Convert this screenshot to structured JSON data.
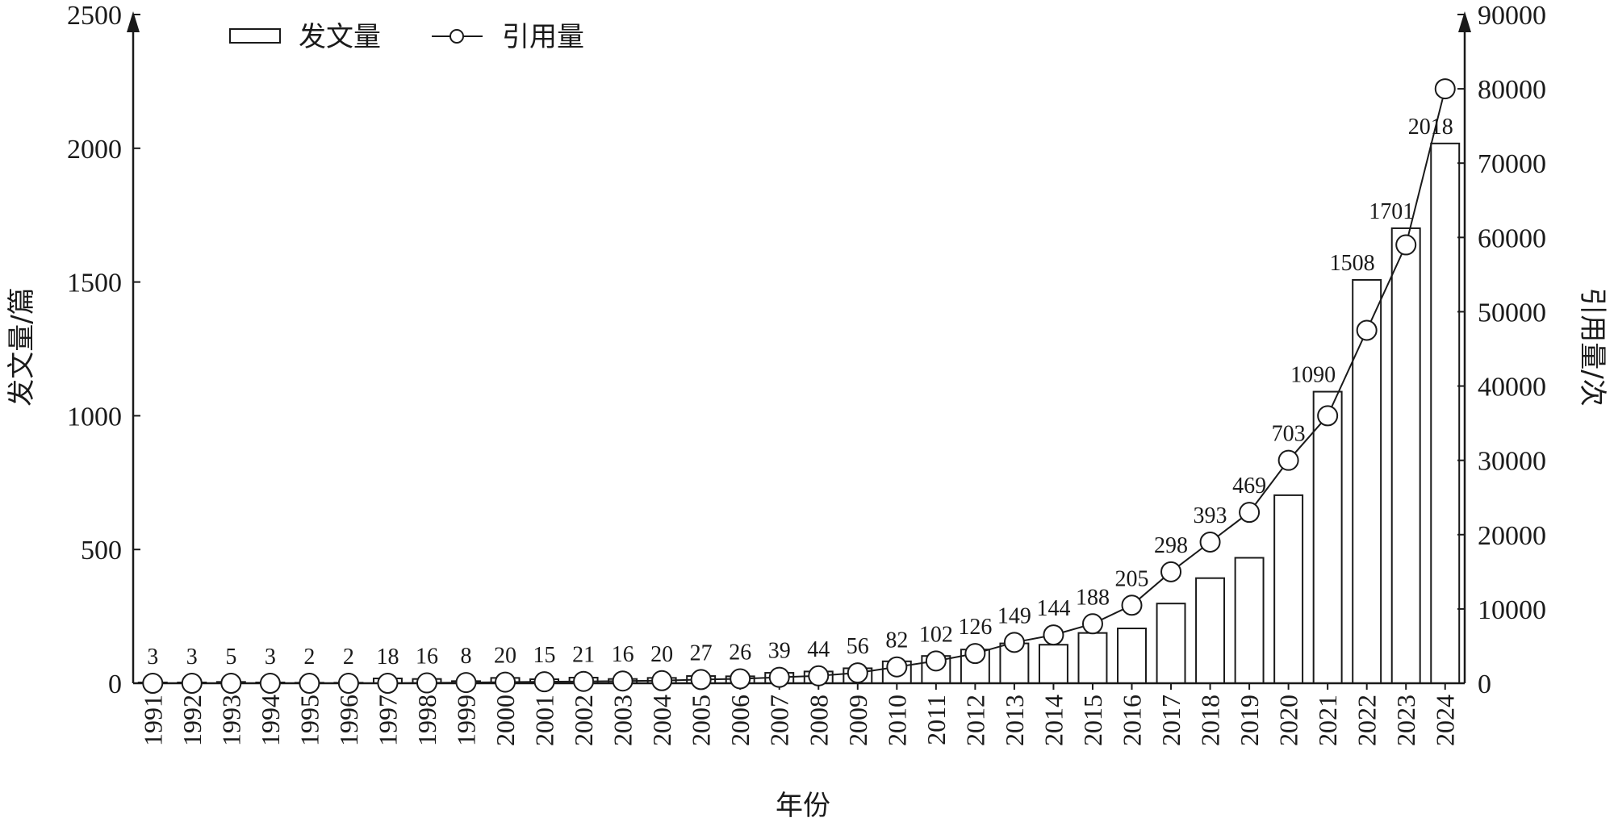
{
  "chart_data": {
    "type": "bar",
    "categories": [
      "1991",
      "1992",
      "1993",
      "1994",
      "1995",
      "1996",
      "1997",
      "1998",
      "1999",
      "2000",
      "2001",
      "2002",
      "2003",
      "2004",
      "2005",
      "2006",
      "2007",
      "2008",
      "2009",
      "2010",
      "2011",
      "2012",
      "2013",
      "2014",
      "2015",
      "2016",
      "2017",
      "2018",
      "2019",
      "2020",
      "2021",
      "2022",
      "2023",
      "2024"
    ],
    "series": [
      {
        "name": "发文量",
        "type": "bar",
        "axis": "left",
        "values": [
          3,
          3,
          5,
          3,
          2,
          2,
          18,
          16,
          8,
          20,
          15,
          21,
          16,
          20,
          27,
          26,
          39,
          44,
          56,
          82,
          102,
          126,
          149,
          144,
          188,
          205,
          298,
          393,
          469,
          703,
          1090,
          1508,
          1701,
          2018
        ]
      },
      {
        "name": "引用量",
        "type": "line",
        "axis": "right",
        "values": [
          0,
          0,
          0,
          0,
          0,
          0,
          0,
          50,
          100,
          150,
          200,
          250,
          300,
          350,
          500,
          600,
          800,
          1000,
          1400,
          2200,
          3000,
          4000,
          5500,
          6500,
          8000,
          10500,
          15000,
          19000,
          23000,
          30000,
          36000,
          47500,
          59000,
          80000
        ]
      }
    ],
    "xlabel": "年份",
    "ylabel": "发文量/篇",
    "y2label": "引用量/次",
    "ylim": [
      0,
      2500
    ],
    "yticks": [
      0,
      500,
      1000,
      1500,
      2000,
      2500
    ],
    "y2lim": [
      0,
      90000
    ],
    "y2ticks": [
      0,
      10000,
      20000,
      30000,
      40000,
      50000,
      60000,
      70000,
      80000,
      90000
    ],
    "legend_position": "top-left",
    "grid": false
  }
}
